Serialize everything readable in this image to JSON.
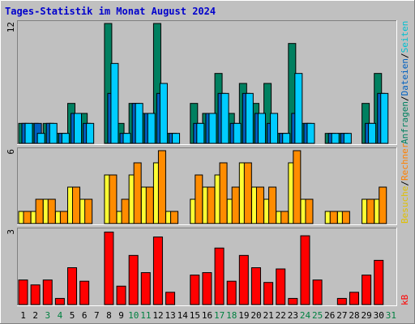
{
  "title": "Tages-Statistik im Monat August 2024",
  "colors": {
    "background": "#c0c0c0",
    "plot_bg": "#c0c0c0",
    "title": "#0000cc",
    "grid": "#e8e8e8",
    "frame_dark": "#7f7f7f",
    "frame_light": "#ffffff",
    "weekend_label": "#008040",
    "weekday_label": "#000000"
  },
  "right_labels": {
    "top": [
      {
        "text": "Anfragen",
        "color": "#008060"
      },
      {
        "text": "/",
        "color": "#000000"
      },
      {
        "text": "Dateien",
        "color": "#0060c0"
      },
      {
        "text": "/",
        "color": "#000000"
      },
      {
        "text": "Seiten",
        "color": "#00c0d0"
      }
    ],
    "middle": [
      {
        "text": "Besuche",
        "color": "#e0c000"
      },
      {
        "text": "/",
        "color": "#000000"
      },
      {
        "text": "Rechner",
        "color": "#ff8000"
      }
    ],
    "bottom": [
      {
        "text": "kB",
        "color": "#ff0000"
      }
    ]
  },
  "chart_data": [
    {
      "type": "bar",
      "panel": "top",
      "ymax_label": "12",
      "ylim": [
        0,
        12
      ],
      "categories": [
        "1",
        "2",
        "3",
        "4",
        "5",
        "6",
        "7",
        "8",
        "9",
        "10",
        "11",
        "12",
        "13",
        "14",
        "15",
        "16",
        "17",
        "18",
        "19",
        "20",
        "21",
        "22",
        "23",
        "24",
        "25",
        "26",
        "27",
        "28",
        "29",
        "30",
        "31"
      ],
      "weekend_days": [
        "3",
        "4",
        "10",
        "11",
        "17",
        "18",
        "24",
        "25",
        "31"
      ],
      "series": [
        {
          "color": "#008060",
          "values": [
            2,
            2,
            2,
            1,
            4,
            3,
            0,
            12,
            2,
            4,
            3,
            12,
            1,
            0,
            4,
            3,
            7,
            3,
            6,
            4,
            6,
            1,
            10,
            2,
            0,
            1,
            1,
            0,
            4,
            7,
            0
          ]
        },
        {
          "color": "#0060c0",
          "values": [
            2,
            2,
            2,
            1,
            3,
            2,
            0,
            5,
            1,
            4,
            3,
            5,
            1,
            0,
            2,
            3,
            5,
            2,
            5,
            3,
            2,
            1,
            3,
            2,
            0,
            1,
            1,
            0,
            2,
            5,
            0
          ]
        },
        {
          "color": "#00ccff",
          "values": [
            2,
            1,
            2,
            1,
            3,
            2,
            0,
            8,
            1,
            4,
            3,
            6,
            1,
            0,
            2,
            3,
            5,
            2,
            5,
            3,
            3,
            1,
            7,
            2,
            0,
            1,
            1,
            0,
            2,
            5,
            0
          ]
        }
      ]
    },
    {
      "type": "bar",
      "panel": "middle",
      "ymax_label": "6",
      "ylim": [
        0,
        6
      ],
      "categories": [
        "1",
        "2",
        "3",
        "4",
        "5",
        "6",
        "7",
        "8",
        "9",
        "10",
        "11",
        "12",
        "13",
        "14",
        "15",
        "16",
        "17",
        "18",
        "19",
        "20",
        "21",
        "22",
        "23",
        "24",
        "25",
        "26",
        "27",
        "28",
        "29",
        "30",
        "31"
      ],
      "series": [
        {
          "color": "#ffff33",
          "values": [
            1,
            1,
            2,
            1,
            3,
            2,
            0,
            4,
            1,
            4,
            3,
            5,
            1,
            0,
            2,
            3,
            4,
            2,
            5,
            3,
            2,
            1,
            5,
            2,
            0,
            1,
            1,
            0,
            2,
            2,
            0
          ]
        },
        {
          "color": "#ff8c00",
          "values": [
            1,
            2,
            2,
            1,
            3,
            2,
            0,
            4,
            2,
            5,
            3,
            6,
            1,
            0,
            4,
            3,
            5,
            3,
            5,
            3,
            3,
            1,
            6,
            2,
            0,
            1,
            1,
            0,
            2,
            3,
            0
          ]
        }
      ]
    },
    {
      "type": "bar",
      "panel": "bottom",
      "ymax_label": "3",
      "ylim": [
        0,
        3
      ],
      "categories": [
        "1",
        "2",
        "3",
        "4",
        "5",
        "6",
        "7",
        "8",
        "9",
        "10",
        "11",
        "12",
        "13",
        "14",
        "15",
        "16",
        "17",
        "18",
        "19",
        "20",
        "21",
        "22",
        "23",
        "24",
        "25",
        "26",
        "27",
        "28",
        "29",
        "30",
        "31"
      ],
      "series": [
        {
          "color": "#ff0000",
          "values": [
            1.0,
            0.8,
            1.0,
            0.25,
            1.5,
            0.95,
            0,
            2.95,
            0.75,
            2.0,
            1.3,
            2.75,
            0.5,
            0,
            1.2,
            1.3,
            2.3,
            0.95,
            2.0,
            1.5,
            0.9,
            1.45,
            0.25,
            2.8,
            1.0,
            0,
            0.25,
            0.5,
            1.2,
            1.8,
            0
          ]
        }
      ]
    }
  ]
}
